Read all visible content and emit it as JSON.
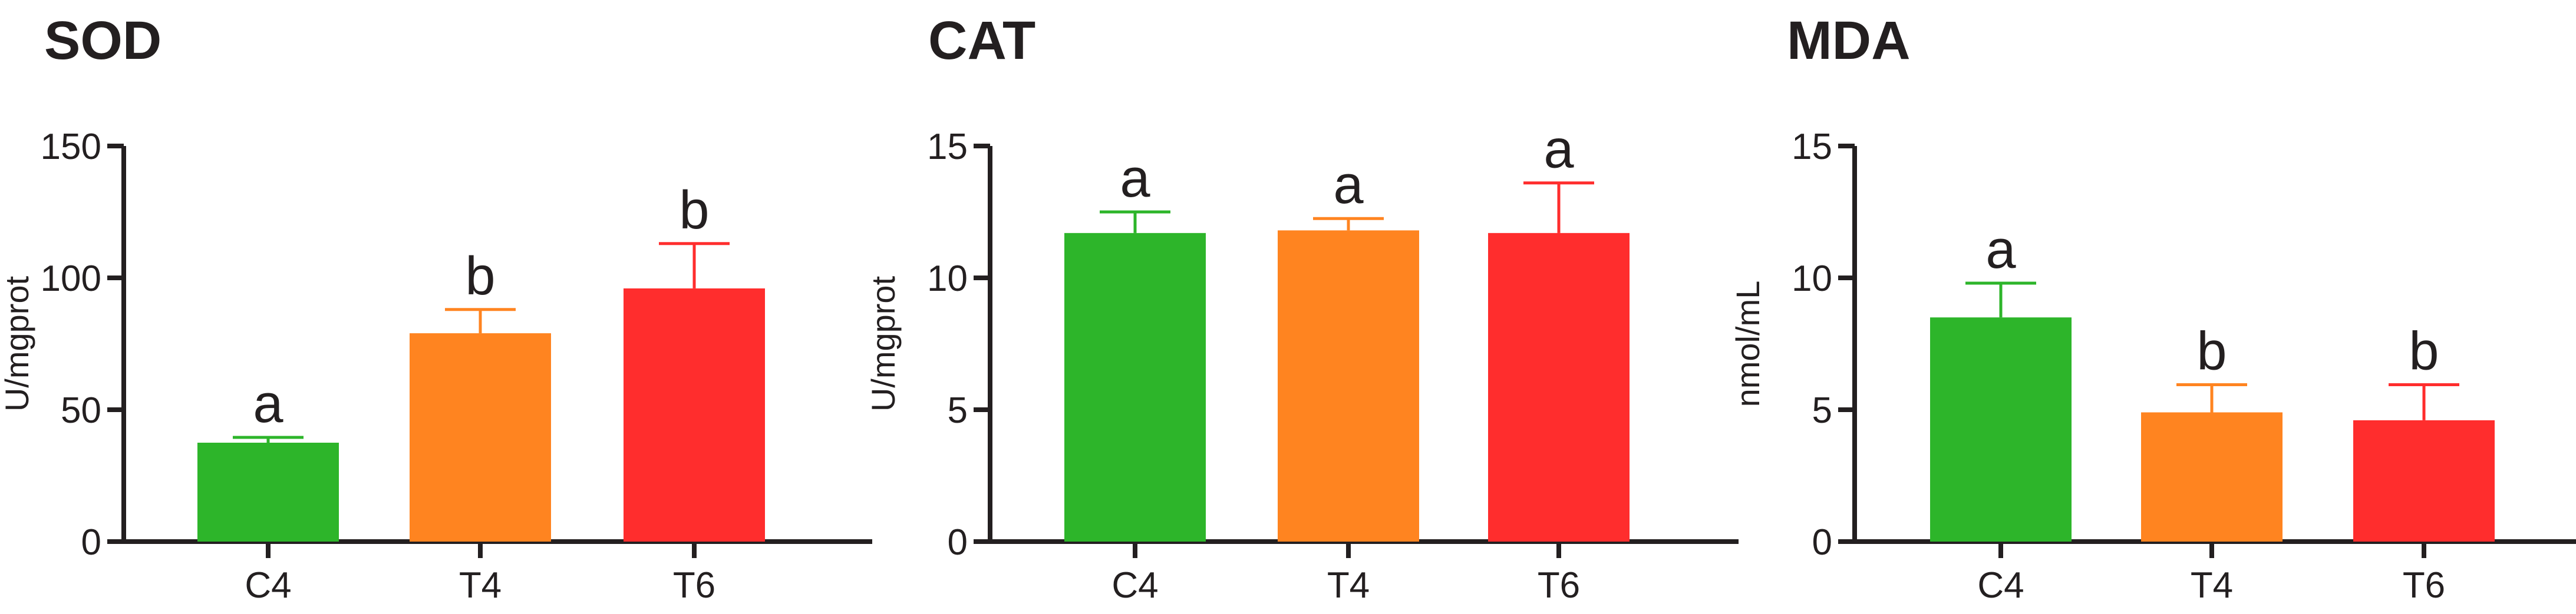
{
  "chart_data": [
    {
      "type": "bar",
      "title": "SOD",
      "ylabel": "U/mgprot",
      "xlabel": "",
      "categories": [
        "C4",
        "T4",
        "T6"
      ],
      "values": [
        37.5,
        79,
        96
      ],
      "errors": [
        2,
        9,
        17
      ],
      "significance": [
        "a",
        "b",
        "b"
      ],
      "ylim": [
        0,
        150
      ],
      "yticks": [
        "0",
        "50",
        "100",
        "150"
      ],
      "grid": false
    },
    {
      "type": "bar",
      "title": "CAT",
      "ylabel": "U/mgprot",
      "xlabel": "",
      "categories": [
        "C4",
        "T4",
        "T6"
      ],
      "values": [
        11.7,
        11.8,
        11.7
      ],
      "errors": [
        0.8,
        0.45,
        1.9
      ],
      "significance": [
        "a",
        "a",
        "a"
      ],
      "ylim": [
        0,
        15
      ],
      "yticks": [
        "0",
        "5",
        "10",
        "15"
      ],
      "grid": false
    },
    {
      "type": "bar",
      "title": "MDA",
      "ylabel": "nmol/mL",
      "xlabel": "",
      "categories": [
        "C4",
        "T4",
        "T6"
      ],
      "values": [
        8.5,
        4.9,
        4.6
      ],
      "errors": [
        1.3,
        1.05,
        1.35
      ],
      "significance": [
        "a",
        "b",
        "b"
      ],
      "ylim": [
        0,
        15
      ],
      "yticks": [
        "0",
        "5",
        "10",
        "15"
      ],
      "grid": false
    }
  ],
  "colors": {
    "C4": "#2db52a",
    "T4": "#ff8420",
    "T6": "#ff2d2d",
    "axis": "#231f20"
  }
}
